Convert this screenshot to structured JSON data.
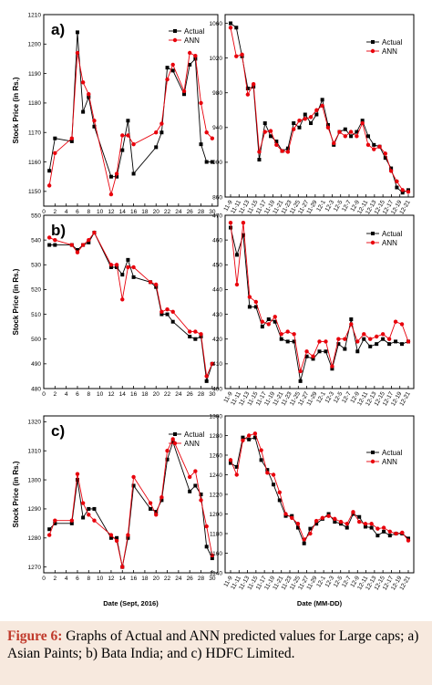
{
  "caption": {
    "label": "Figure 6:",
    "text": "Graphs of Actual and ANN predicted values for Large caps; a) Asian Paints; b) Bata India; and c) HDFC Limited."
  },
  "chart_data": [
    {
      "id": "a-left",
      "type": "line",
      "panel_label": "a)",
      "ylabel": "Stock Price (in Rs.)",
      "xlabel": "",
      "ylim": [
        1145,
        1210
      ],
      "yticks": [
        1150,
        1160,
        1170,
        1180,
        1190,
        1200,
        1210
      ],
      "xlim": [
        0,
        31
      ],
      "xticks": [
        0,
        2,
        4,
        6,
        8,
        10,
        12,
        14,
        16,
        18,
        20,
        22,
        24,
        26,
        28,
        30
      ],
      "legend": "top-right",
      "series": [
        {
          "name": "Actual",
          "color": "#000000",
          "marker": "square",
          "x": [
            1,
            2,
            5,
            6,
            7,
            8,
            9,
            12,
            13,
            14,
            15,
            16,
            20,
            21,
            22,
            23,
            25,
            26,
            27,
            28,
            29,
            30
          ],
          "y": [
            1157,
            1168,
            1167,
            1204,
            1177,
            1182,
            1172,
            1155,
            1155,
            1164,
            1174,
            1156,
            1165,
            1170,
            1192,
            1191,
            1183,
            1193,
            1195,
            1166,
            1160,
            1160
          ]
        },
        {
          "name": "ANN",
          "color": "#e8000b",
          "marker": "circle",
          "x": [
            1,
            2,
            5,
            6,
            7,
            8,
            9,
            12,
            13,
            14,
            15,
            16,
            20,
            21,
            22,
            23,
            25,
            26,
            27,
            28,
            29,
            30
          ],
          "y": [
            1152,
            1163,
            1168,
            1197,
            1187,
            1183,
            1174,
            1149,
            1156,
            1169,
            1169,
            1166,
            1170,
            1173,
            1188,
            1193,
            1184,
            1197,
            1196,
            1180,
            1170,
            1168
          ]
        }
      ]
    },
    {
      "id": "a-right",
      "type": "line",
      "ylabel": "",
      "xlabel": "",
      "ylim": [
        860,
        1070
      ],
      "yticks": [
        860,
        900,
        940,
        980,
        1020,
        1060
      ],
      "xticks": [
        "11-9",
        "11-11",
        "11-13",
        "11-15",
        "11-17",
        "11-19",
        "11-21",
        "11-23",
        "11-25",
        "11-27",
        "11-29",
        "12-1",
        "12-3",
        "12-5",
        "12-7",
        "12-9",
        "12-11",
        "12-13",
        "12-15",
        "12-17",
        "12-19",
        "12-21"
      ],
      "legend": "top-right",
      "series": [
        {
          "name": "Actual",
          "color": "#000000",
          "marker": "square",
          "y": [
            1060,
            1055,
            1022,
            985,
            987,
            903,
            945,
            930,
            924,
            913,
            916,
            945,
            940,
            955,
            945,
            955,
            972,
            943,
            920,
            935,
            938,
            930,
            935,
            948,
            930,
            920,
            918,
            905,
            893,
            871,
            865,
            868
          ]
        },
        {
          "name": "ANN",
          "color": "#e8000b",
          "marker": "circle",
          "y": [
            1055,
            1022,
            1024,
            978,
            990,
            912,
            935,
            936,
            920,
            913,
            912,
            938,
            948,
            950,
            952,
            960,
            965,
            940,
            922,
            935,
            930,
            935,
            930,
            945,
            920,
            915,
            918,
            910,
            890,
            878,
            868,
            866
          ]
        }
      ]
    },
    {
      "id": "b-left",
      "type": "line",
      "panel_label": "b)",
      "ylabel": "Stock Price (in Rs.)",
      "xlabel": "",
      "ylim": [
        480,
        550
      ],
      "yticks": [
        480,
        490,
        500,
        510,
        520,
        530,
        540,
        550
      ],
      "xlim": [
        0,
        31
      ],
      "xticks": [
        0,
        2,
        4,
        6,
        8,
        10,
        12,
        14,
        16,
        18,
        20,
        22,
        24,
        26,
        28,
        30
      ],
      "series": [
        {
          "name": "Actual",
          "color": "#000000",
          "marker": "square",
          "x": [
            1,
            2,
            5,
            6,
            7,
            8,
            9,
            12,
            13,
            14,
            15,
            16,
            19,
            20,
            21,
            22,
            23,
            26,
            27,
            28,
            29,
            30
          ],
          "y": [
            538,
            538,
            538,
            536,
            538,
            539,
            543,
            529,
            529,
            526,
            532,
            525,
            523,
            521,
            510,
            510,
            507,
            501,
            500,
            501,
            483,
            490
          ]
        },
        {
          "name": "ANN",
          "color": "#e8000b",
          "marker": "circle",
          "x": [
            1,
            2,
            5,
            6,
            7,
            8,
            9,
            12,
            13,
            14,
            15,
            16,
            19,
            20,
            21,
            22,
            23,
            26,
            27,
            28,
            29,
            30
          ],
          "y": [
            541,
            540,
            538,
            535,
            538,
            540,
            543,
            530,
            530,
            516,
            529,
            529,
            523,
            522,
            511,
            512,
            511,
            503,
            503,
            502,
            485,
            490
          ]
        }
      ]
    },
    {
      "id": "b-right",
      "type": "line",
      "ylabel": "",
      "xlabel": "",
      "ylim": [
        400,
        470
      ],
      "yticks": [
        400,
        410,
        420,
        430,
        440,
        450,
        460,
        470
      ],
      "xticks": [
        "11-9",
        "11-11",
        "11-13",
        "11-15",
        "11-17",
        "11-19",
        "11-21",
        "11-23",
        "11-25",
        "11-27",
        "11-29",
        "12-1",
        "12-3",
        "12-5",
        "12-7",
        "12-9",
        "12-11",
        "12-13",
        "12-15",
        "12-17",
        "12-19",
        "12-21"
      ],
      "legend": "top-right",
      "series": [
        {
          "name": "Actual",
          "color": "#000000",
          "marker": "square",
          "y": [
            465,
            454,
            462,
            433,
            433,
            425,
            428,
            427,
            420,
            419,
            419,
            403,
            413,
            412,
            415,
            415,
            408,
            418,
            416,
            428,
            415,
            420,
            417,
            418,
            420,
            418,
            419,
            418,
            419
          ]
        },
        {
          "name": "ANN",
          "color": "#e8000b",
          "marker": "circle",
          "y": [
            467,
            442,
            467,
            437,
            435,
            427,
            426,
            429,
            422,
            423,
            422,
            407,
            415,
            413,
            419,
            419,
            409,
            420,
            420,
            426,
            419,
            422,
            420,
            421,
            422,
            420,
            427,
            426,
            419
          ]
        }
      ]
    },
    {
      "id": "c-left",
      "type": "line",
      "panel_label": "c)",
      "ylabel": "Stock Price (in Rs.)",
      "xlabel": "Date (Sept, 2016)",
      "ylim": [
        1268,
        1322
      ],
      "yticks": [
        1270,
        1280,
        1290,
        1300,
        1310,
        1320
      ],
      "xlim": [
        0,
        31
      ],
      "xticks": [
        0,
        2,
        4,
        6,
        8,
        10,
        12,
        14,
        16,
        18,
        20,
        22,
        24,
        26,
        28,
        30
      ],
      "legend": "top-right",
      "series": [
        {
          "name": "Actual",
          "color": "#000000",
          "marker": "square",
          "x": [
            1,
            2,
            5,
            6,
            7,
            8,
            9,
            12,
            13,
            14,
            15,
            16,
            19,
            20,
            21,
            22,
            23,
            26,
            27,
            28,
            29,
            30
          ],
          "y": [
            1283,
            1285,
            1285,
            1300,
            1287,
            1290,
            1290,
            1280,
            1280,
            1270,
            1280,
            1298,
            1290,
            1289,
            1293,
            1307,
            1313,
            1296,
            1298,
            1295,
            1277,
            1273
          ]
        },
        {
          "name": "ANN",
          "color": "#e8000b",
          "marker": "circle",
          "x": [
            1,
            2,
            5,
            6,
            7,
            8,
            9,
            12,
            13,
            14,
            15,
            16,
            19,
            20,
            21,
            22,
            23,
            26,
            27,
            28,
            29,
            30
          ],
          "y": [
            1281,
            1286,
            1286,
            1302,
            1292,
            1288,
            1286,
            1281,
            1279,
            1270,
            1281,
            1301,
            1292,
            1288,
            1294,
            1310,
            1314,
            1301,
            1303,
            1293,
            1284,
            1274
          ]
        }
      ]
    },
    {
      "id": "c-right",
      "type": "line",
      "ylabel": "",
      "xlabel": "Date (MM-DD)",
      "ylim": [
        1140,
        1300
      ],
      "yticks": [
        1140,
        1160,
        1180,
        1200,
        1220,
        1240,
        1260,
        1280,
        1300
      ],
      "xticks": [
        "11-9",
        "11-11",
        "11-13",
        "11-15",
        "11-17",
        "11-19",
        "11-21",
        "11-23",
        "11-25",
        "11-27",
        "11-29",
        "12-1",
        "12-3",
        "12-5",
        "12-7",
        "12-9",
        "12-11",
        "12-13",
        "12-15",
        "12-17",
        "12-19",
        "12-21"
      ],
      "legend": "top-right",
      "series": [
        {
          "name": "Actual",
          "color": "#000000",
          "marker": "square",
          "y": [
            1252,
            1248,
            1278,
            1276,
            1278,
            1255,
            1245,
            1230,
            1214,
            1198,
            1198,
            1186,
            1170,
            1185,
            1190,
            1195,
            1200,
            1192,
            1190,
            1186,
            1200,
            1197,
            1187,
            1186,
            1178,
            1182,
            1178,
            1180,
            1180,
            1175
          ]
        },
        {
          "name": "ANN",
          "color": "#e8000b",
          "marker": "circle",
          "y": [
            1255,
            1240,
            1275,
            1280,
            1282,
            1265,
            1242,
            1240,
            1222,
            1200,
            1196,
            1190,
            1174,
            1180,
            1193,
            1196,
            1198,
            1195,
            1192,
            1190,
            1202,
            1192,
            1190,
            1190,
            1185,
            1186,
            1182,
            1180,
            1181,
            1173
          ]
        }
      ]
    }
  ]
}
